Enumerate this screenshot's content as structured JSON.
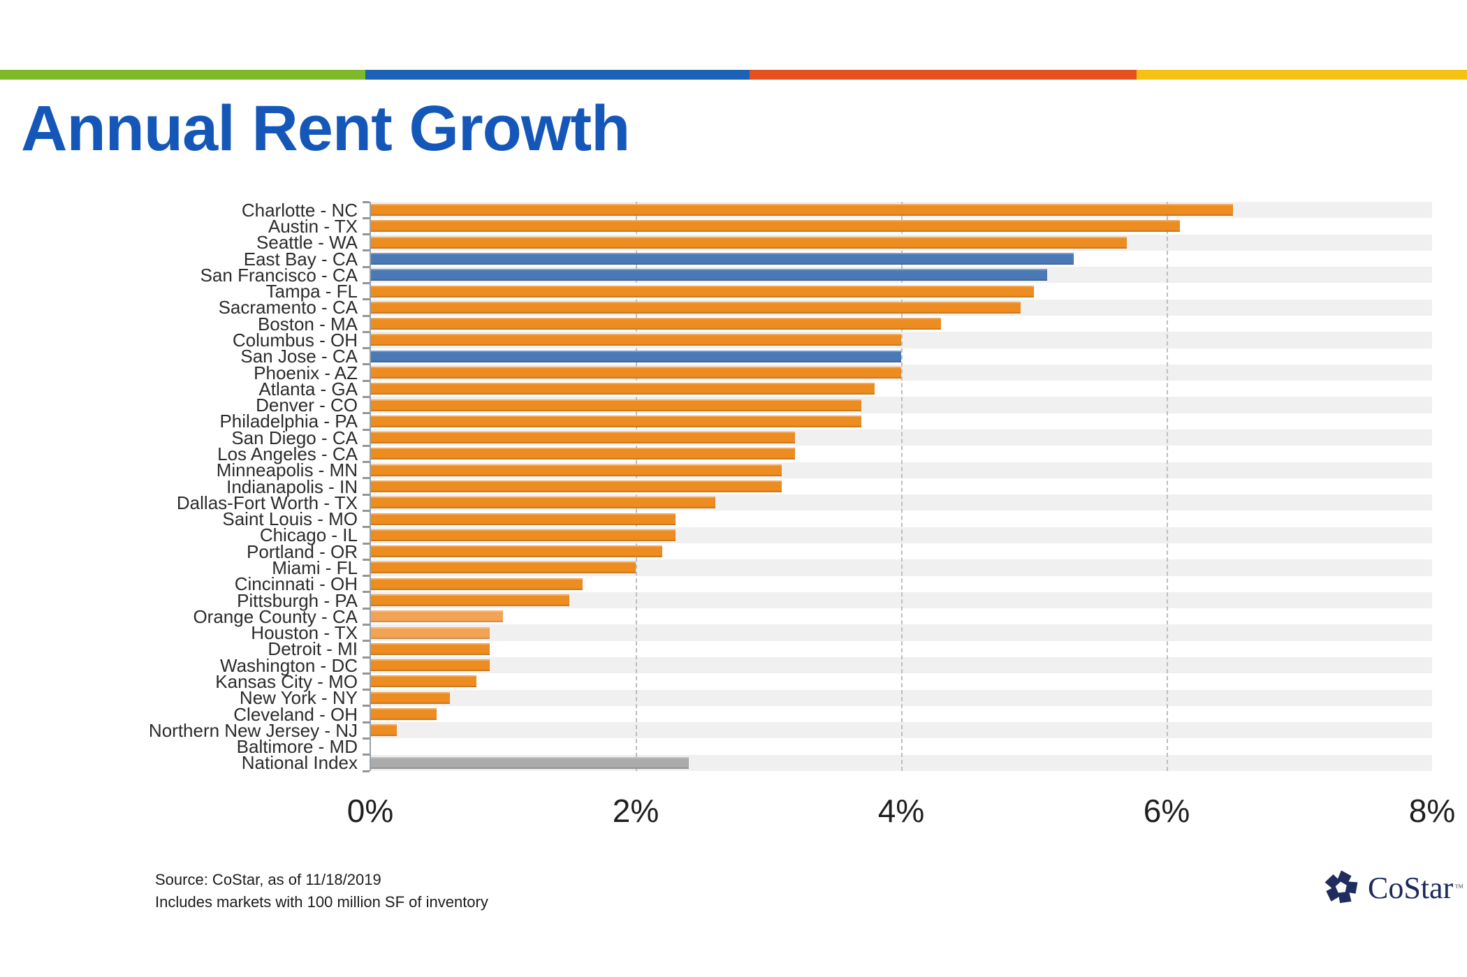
{
  "header": {
    "title": "Annual Rent Growth",
    "title_color": "#1557B8",
    "stripe": [
      {
        "name": "green",
        "color": "#7DB928",
        "width_pct": 24.9
      },
      {
        "name": "blue",
        "color": "#1C63B7",
        "width_pct": 26.2
      },
      {
        "name": "red",
        "color": "#E5501D",
        "width_pct": 26.4
      },
      {
        "name": "yellow",
        "color": "#F6C212",
        "width_pct": 22.5
      }
    ]
  },
  "chart_data": {
    "type": "bar",
    "orientation": "horizontal",
    "title": "Annual Rent Growth",
    "xlabel": "",
    "ylabel": "",
    "xlim": [
      0,
      8
    ],
    "unit": "%",
    "grid": "dashed vertical at 2,4,6",
    "gridlines": [
      2,
      4,
      6
    ],
    "x_ticks": [
      {
        "value": 0,
        "label": "0%"
      },
      {
        "value": 2,
        "label": "2%"
      },
      {
        "value": 4,
        "label": "4%"
      },
      {
        "value": 6,
        "label": "6%"
      },
      {
        "value": 8,
        "label": "8%"
      }
    ],
    "categories": [
      "Charlotte - NC",
      "Austin - TX",
      "Seattle - WA",
      "East Bay - CA",
      "San Francisco - CA",
      "Tampa - FL",
      "Sacramento - CA",
      "Boston - MA",
      "Columbus - OH",
      "San Jose - CA",
      "Phoenix - AZ",
      "Atlanta - GA",
      "Denver - CO",
      "Philadelphia - PA",
      "San Diego - CA",
      "Los Angeles - CA",
      "Minneapolis - MN",
      "Indianapolis - IN",
      "Dallas-Fort Worth - TX",
      "Saint Louis - MO",
      "Chicago - IL",
      "Portland - OR",
      "Miami - FL",
      "Cincinnati - OH",
      "Pittsburgh - PA",
      "Orange County - CA",
      "Houston - TX",
      "Detroit - MI",
      "Washington - DC",
      "Kansas City - MO",
      "New York - NY",
      "Cleveland - OH",
      "Northern New Jersey - NJ",
      "Baltimore - MD",
      "National Index"
    ],
    "values": [
      6.5,
      6.1,
      5.7,
      5.3,
      5.1,
      5.0,
      4.9,
      4.3,
      4.0,
      4.0,
      4.0,
      3.8,
      3.7,
      3.7,
      3.2,
      3.2,
      3.1,
      3.1,
      2.6,
      2.3,
      2.3,
      2.2,
      2.0,
      1.6,
      1.5,
      1.0,
      0.9,
      0.9,
      0.9,
      0.8,
      0.6,
      0.5,
      0.2,
      0.0,
      2.4
    ],
    "bar_styles": [
      "orange",
      "orange",
      "orange",
      "blue",
      "blue",
      "orange",
      "orange",
      "orange",
      "orange",
      "blue",
      "orange",
      "orange",
      "orange",
      "orange",
      "orange",
      "orange",
      "orange",
      "orange",
      "orange",
      "orange",
      "orange",
      "orange",
      "orange",
      "orange",
      "orange",
      "light-orange",
      "light-orange",
      "orange",
      "orange",
      "orange",
      "orange",
      "orange",
      "orange",
      "orange",
      "gray"
    ],
    "colors": {
      "orange": "#EC8C21",
      "light-orange": "#F2A355",
      "blue": "#4A79B5",
      "gray": "#ABABAB"
    },
    "row_band_shade_color": "#F0F0F0",
    "legend": "none",
    "notes": "Blue bars highlight East Bay, San Francisco and San Jose; gray bar is the National Index benchmark"
  },
  "footer": {
    "source_line1": "Source: CoStar, as of 11/18/2019",
    "source_line2": "Includes markets with 100 million SF of inventory"
  },
  "logo": {
    "text": "CoStar",
    "trademark": "™",
    "color": "#1B2A57"
  }
}
